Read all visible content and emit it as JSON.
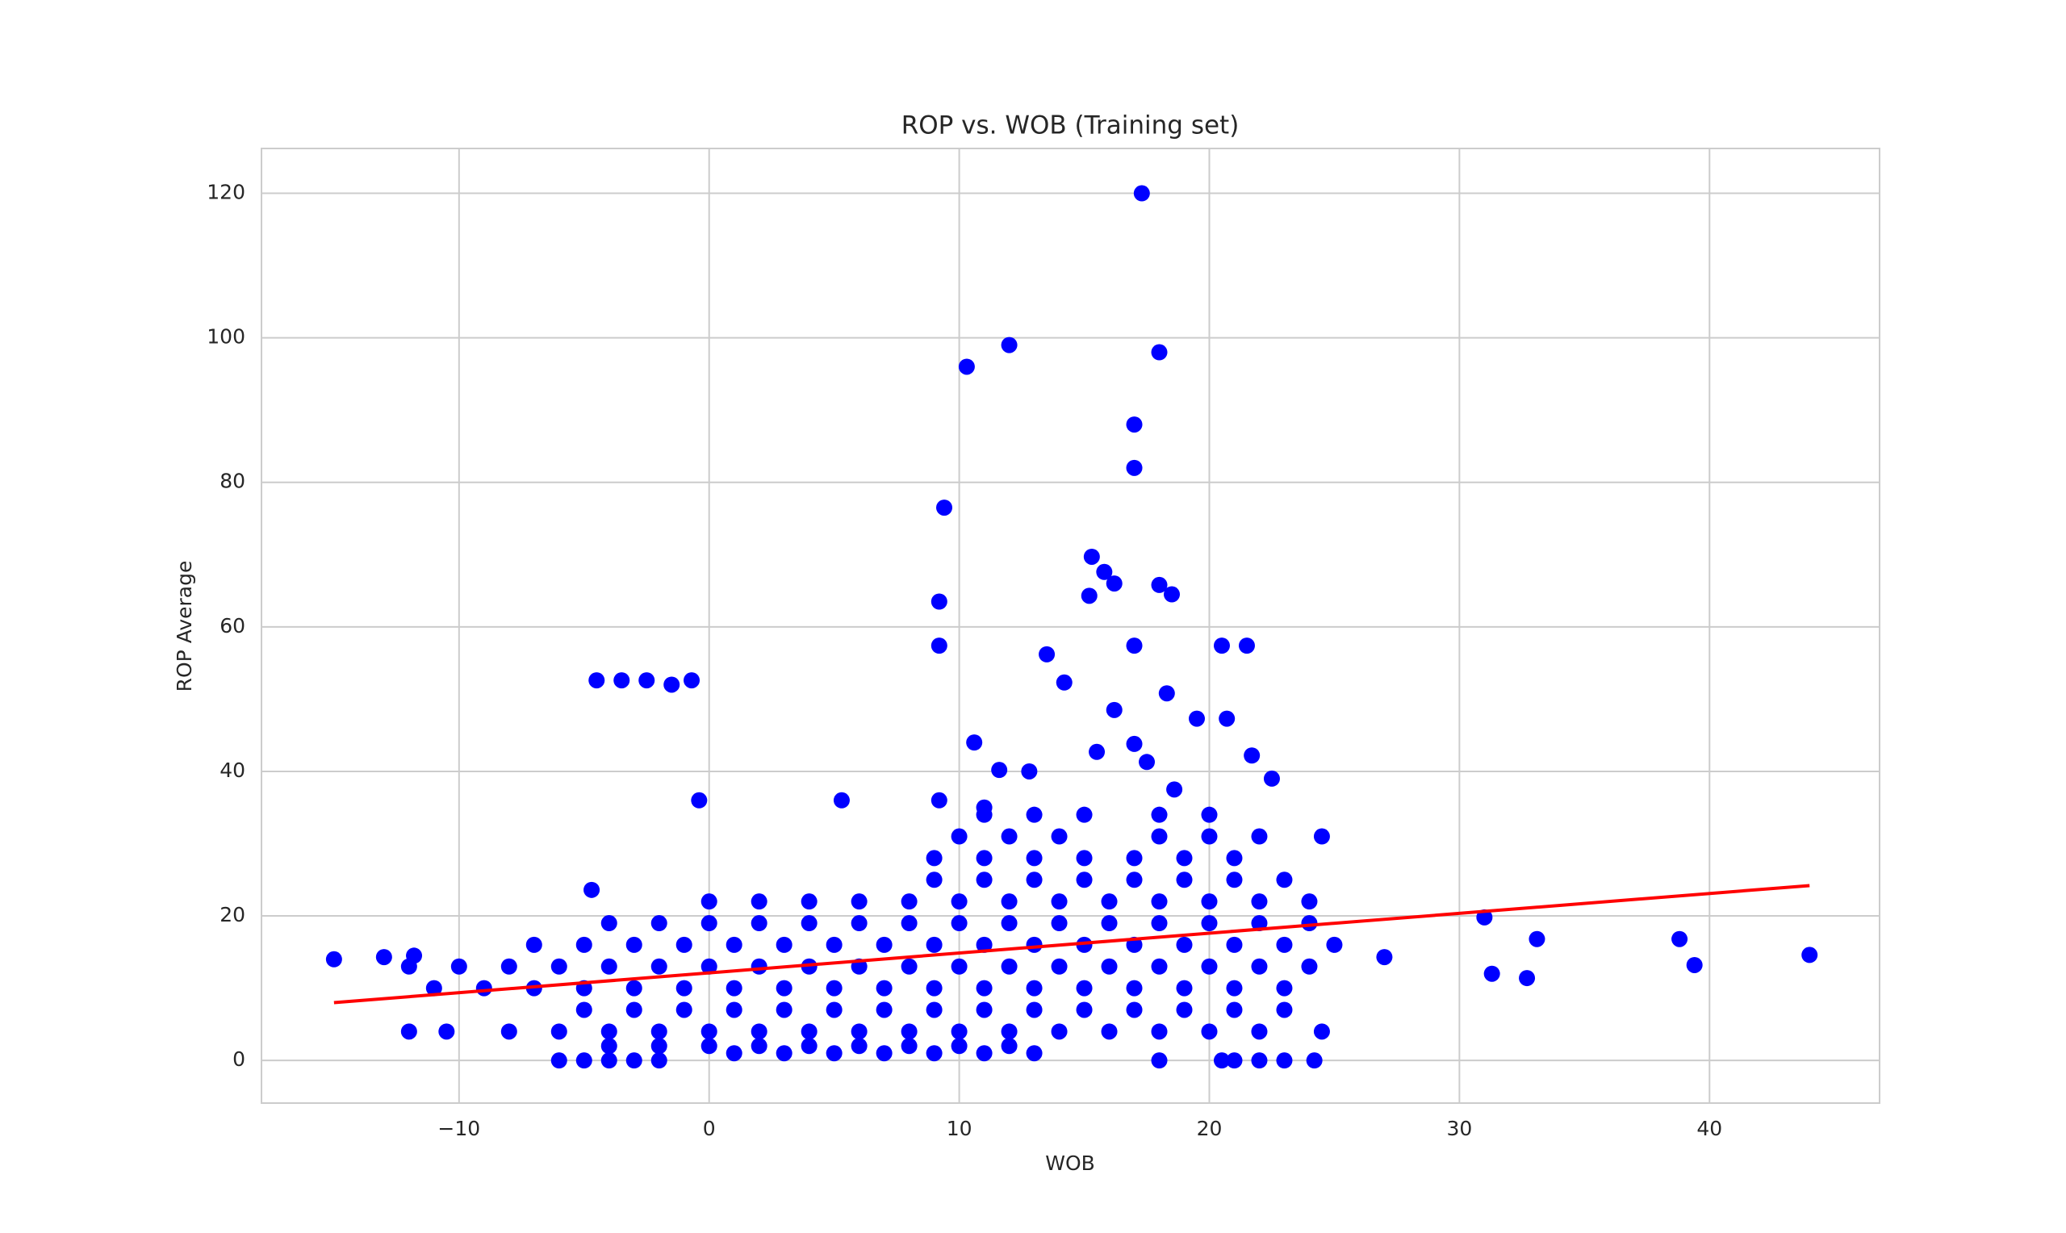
{
  "chart_data": {
    "type": "scatter",
    "title": "ROP vs. WOB (Training set)",
    "x_label": "WOB",
    "y_label": "ROP Average",
    "xlim": [
      -17.9,
      46.8
    ],
    "ylim": [
      -5.9,
      126.2
    ],
    "xticks": [
      {
        "value": -10,
        "label": "−10"
      },
      0,
      10,
      20,
      30,
      40
    ],
    "yticks": [
      0,
      20,
      40,
      60,
      80,
      100,
      120
    ],
    "grid": true,
    "series": [
      {
        "type": "scatter",
        "color": "#0000ff",
        "x": [
          -6,
          -5,
          -4,
          -3,
          -2,
          18,
          20.5,
          21,
          22,
          23,
          24.2,
          1,
          3,
          5,
          7,
          9,
          11,
          13,
          -4,
          -2,
          0,
          2,
          4,
          6,
          8,
          10,
          12,
          -12,
          -10.5,
          -8,
          -6,
          -4,
          -2,
          0,
          2,
          4,
          6,
          8,
          10,
          12,
          14,
          16,
          18,
          20,
          22,
          24.5,
          -5,
          -3,
          -1,
          1,
          3,
          5,
          7,
          9,
          11,
          13,
          15,
          17,
          19,
          21,
          23,
          -11,
          -9,
          -7,
          -5,
          -3,
          -1,
          1,
          3,
          5,
          7,
          9,
          11,
          13,
          15,
          17,
          19,
          21,
          23,
          -12,
          -10,
          -8,
          -6,
          -4,
          -2,
          0,
          2,
          4,
          6,
          8,
          10,
          12,
          14,
          16,
          18,
          20,
          22,
          24,
          -7,
          -5,
          -3,
          -1,
          1,
          3,
          5,
          7,
          9,
          11,
          13,
          15,
          17,
          19,
          21,
          23,
          25,
          -4,
          -2,
          0,
          2,
          4,
          6,
          8,
          10,
          12,
          14,
          16,
          18,
          20,
          22,
          24,
          0,
          2,
          4,
          6,
          8,
          10,
          12,
          14,
          16,
          18,
          20,
          22,
          24,
          9,
          11,
          13,
          15,
          17,
          19,
          21,
          23,
          9,
          11,
          13,
          15,
          17,
          19,
          21,
          10,
          12,
          14,
          18,
          20,
          22,
          24.5,
          11,
          13,
          15,
          18,
          20,
          -15,
          -13,
          -11.8,
          -4.7,
          -0.4,
          5.3,
          9.2,
          11,
          9.2,
          9.2,
          9.4,
          10.3,
          12,
          17.3,
          18,
          17,
          17,
          15.3,
          15.2,
          15.8,
          16.2,
          18,
          18.5,
          17,
          20.5,
          21.5,
          14.2,
          16.2,
          18.3,
          19.5,
          20.7,
          10.6,
          11.6,
          12.8,
          15.5,
          17,
          21.7,
          22.5,
          13.5,
          17.5,
          18.6,
          31,
          31.3,
          32.7,
          33.1,
          38.8,
          39.4,
          44,
          27,
          -4.5,
          -3.5,
          -2.5,
          -1.5,
          -0.7
        ],
        "values": [
          0,
          0,
          0,
          0,
          0,
          0,
          0,
          0,
          0,
          0,
          0,
          1,
          1,
          1,
          1,
          1,
          1,
          1,
          2,
          2,
          2,
          2,
          2,
          2,
          2,
          2,
          2,
          4,
          4,
          4,
          4,
          4,
          4,
          4,
          4,
          4,
          4,
          4,
          4,
          4,
          4,
          4,
          4,
          4,
          4,
          4,
          7,
          7,
          7,
          7,
          7,
          7,
          7,
          7,
          7,
          7,
          7,
          7,
          7,
          7,
          7,
          10,
          10,
          10,
          10,
          10,
          10,
          10,
          10,
          10,
          10,
          10,
          10,
          10,
          10,
          10,
          10,
          10,
          10,
          13,
          13,
          13,
          13,
          13,
          13,
          13,
          13,
          13,
          13,
          13,
          13,
          13,
          13,
          13,
          13,
          13,
          13,
          13,
          16,
          16,
          16,
          16,
          16,
          16,
          16,
          16,
          16,
          16,
          16,
          16,
          16,
          16,
          16,
          16,
          16,
          19,
          19,
          19,
          19,
          19,
          19,
          19,
          19,
          19,
          19,
          19,
          19,
          19,
          19,
          19,
          22,
          22,
          22,
          22,
          22,
          22,
          22,
          22,
          22,
          22,
          22,
          22,
          22,
          25,
          25,
          25,
          25,
          25,
          25,
          25,
          25,
          28,
          28,
          28,
          28,
          28,
          28,
          28,
          31,
          31,
          31,
          31,
          31,
          31,
          31,
          34,
          34,
          34,
          34,
          34,
          14,
          14.3,
          14.5,
          23.6,
          36,
          36,
          36,
          35,
          63.5,
          57.4,
          76.5,
          96,
          99,
          120,
          98,
          88,
          82,
          69.7,
          64.3,
          67.6,
          66,
          65.8,
          64.5,
          57.4,
          57.4,
          57.4,
          52.3,
          48.5,
          50.8,
          47.3,
          47.3,
          44,
          40.2,
          40,
          42.7,
          43.8,
          42.2,
          39,
          56.2,
          41.3,
          37.5,
          19.8,
          12,
          11.4,
          16.8,
          16.8,
          13.2,
          14.6,
          14.3,
          52.6,
          52.6,
          52.6,
          52,
          52.6
        ]
      },
      {
        "type": "line",
        "color": "#ff0000",
        "x": [
          -15,
          44
        ],
        "values": [
          8,
          24.2
        ]
      }
    ]
  }
}
